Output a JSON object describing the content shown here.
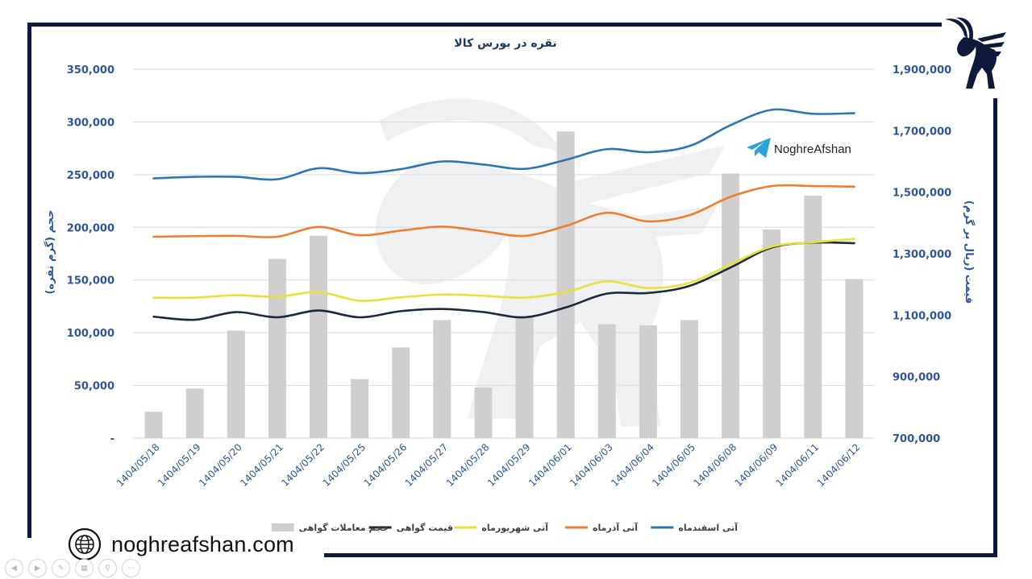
{
  "brand": {
    "watermark": "NoghreAfshan",
    "website": "noghreafshan.com"
  },
  "colors": {
    "frame": "#0f1a3a",
    "axis_text": "#2f5597",
    "title": "#1f3864",
    "grid": "#d9d9d9",
    "telegram": "#2aa3d9"
  },
  "icons": {
    "logo": "ibex-logo-icon",
    "globe": "globe-icon",
    "telegram": "telegram-icon"
  },
  "player_controls": [
    "prev",
    "next",
    "pen",
    "slides",
    "zoom",
    "more"
  ],
  "chart_data": {
    "type": "bar+line",
    "title": "نقره در بورس کالا",
    "ylabel_left": "حجم (گرم نقره)",
    "ylabel_right": "قیمت (ریال بر گرم)",
    "y_left": {
      "range": [
        0,
        350000
      ],
      "ticks": [
        0,
        50000,
        100000,
        150000,
        200000,
        250000,
        300000,
        350000
      ],
      "tick_labels": [
        "-",
        "50,000",
        "100,000",
        "150,000",
        "200,000",
        "250,000",
        "300,000",
        "350,000"
      ]
    },
    "y_right": {
      "range": [
        700000,
        1900000
      ],
      "ticks": [
        700000,
        900000,
        1100000,
        1300000,
        1500000,
        1700000,
        1900000
      ],
      "tick_labels": [
        "700,000",
        "900,000",
        "1,100,000",
        "1,300,000",
        "1,500,000",
        "1,700,000",
        "1,900,000"
      ]
    },
    "grid": true,
    "legend_position": "bottom",
    "categories": [
      "1404/05/18",
      "1404/05/19",
      "1404/05/20",
      "1404/05/21",
      "1404/05/22",
      "1404/05/25",
      "1404/05/26",
      "1404/05/27",
      "1404/05/28",
      "1404/05/29",
      "1404/06/01",
      "1404/06/03",
      "1404/06/04",
      "1404/06/05",
      "1404/06/08",
      "1404/06/09",
      "1404/06/11",
      "1404/06/12"
    ],
    "bars": {
      "name": "حجم معاملات گواهی",
      "axis": "left",
      "color": "#d0cece",
      "values": [
        25000,
        47000,
        102000,
        170000,
        192000,
        56000,
        86000,
        112000,
        48000,
        115000,
        291000,
        108000,
        107000,
        112000,
        251000,
        198000,
        230000,
        151000
      ]
    },
    "lines": [
      {
        "name": "قیمت گواهی",
        "axis": "right",
        "color": "#1b2a3c",
        "values": [
          1095000,
          1085000,
          1110000,
          1093000,
          1115000,
          1093000,
          1113000,
          1120000,
          1110000,
          1093000,
          1125000,
          1170000,
          1172000,
          1195000,
          1255000,
          1320000,
          1336000,
          1334000
        ]
      },
      {
        "name": "آتی شهریورماه",
        "axis": "right",
        "color": "#e8e236",
        "values": [
          1157000,
          1157000,
          1165000,
          1160000,
          1175000,
          1147000,
          1158000,
          1167000,
          1163000,
          1157000,
          1175000,
          1210000,
          1188000,
          1205000,
          1265000,
          1323000,
          1337000,
          1348000
        ]
      },
      {
        "name": "آتی آذرماه",
        "axis": "right",
        "color": "#ed7d31",
        "values": [
          1355000,
          1357000,
          1358000,
          1355000,
          1387000,
          1360000,
          1375000,
          1388000,
          1373000,
          1358000,
          1390000,
          1433000,
          1405000,
          1425000,
          1485000,
          1520000,
          1520000,
          1518000
        ]
      },
      {
        "name": "آتی اسفندماه",
        "axis": "right",
        "color": "#2e75b6",
        "values": [
          1545000,
          1550000,
          1550000,
          1542000,
          1578000,
          1562000,
          1575000,
          1600000,
          1590000,
          1576000,
          1605000,
          1640000,
          1630000,
          1650000,
          1718000,
          1768000,
          1755000,
          1757000
        ]
      }
    ]
  }
}
